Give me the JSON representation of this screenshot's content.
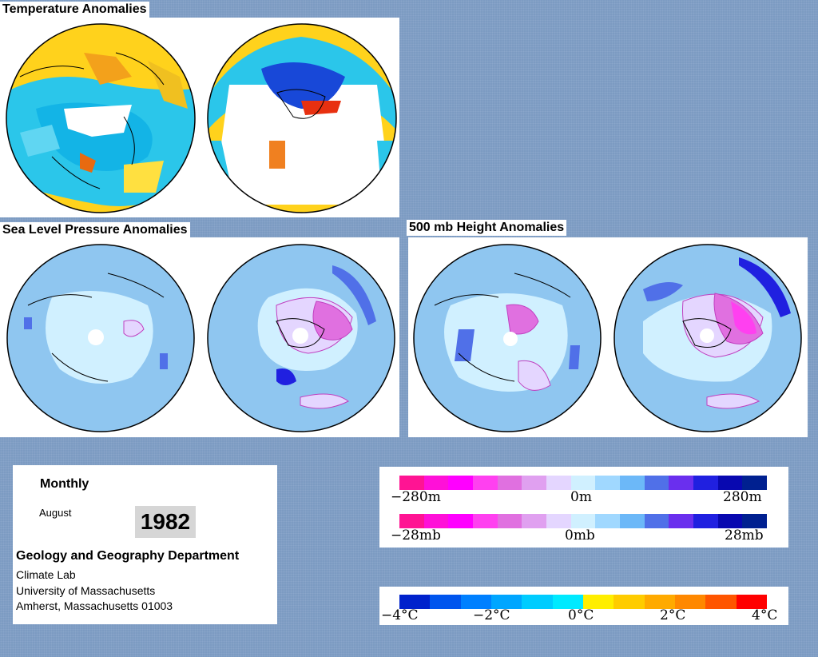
{
  "panels": {
    "temperature": {
      "title": "Temperature Anomalies"
    },
    "slp": {
      "title": "Sea Level Pressure Anomalies"
    },
    "height": {
      "title": "500 mb Height Anomalies"
    }
  },
  "info": {
    "period": "Monthly",
    "month": "August",
    "year": "1982",
    "department": "Geology and Geography Department",
    "lab": "Climate Lab",
    "university": "University of Massachusetts",
    "address": "Amherst, Massachusetts 01003"
  },
  "legends": {
    "height": {
      "left": "−280m",
      "center": "0m",
      "right": "280m"
    },
    "pressure": {
      "left": "−28mb",
      "center": "0mb",
      "right": "28mb"
    },
    "temperature": {
      "t0": "−4°C",
      "t1": "−2°C",
      "t2": "0°C",
      "t3": "2°C",
      "t4": "4°C"
    }
  },
  "colors": {
    "pressure_scale": [
      "#ff1493",
      "#ff10d8",
      "#ff00ff",
      "#ff40f0",
      "#e070e0",
      "#e0a0f0",
      "#e4d6ff",
      "#d0f0ff",
      "#a0d8ff",
      "#6cb8f8",
      "#5070e8",
      "#6a2fee",
      "#2020e0",
      "#0808b0",
      "#002090"
    ],
    "temperature_scale": [
      "#0022cc",
      "#0055ee",
      "#0080ff",
      "#00a6ff",
      "#00ccff",
      "#00eaff",
      "#ffee00",
      "#ffcc00",
      "#ffaa00",
      "#ff8800",
      "#ff5500",
      "#ff0000"
    ]
  }
}
